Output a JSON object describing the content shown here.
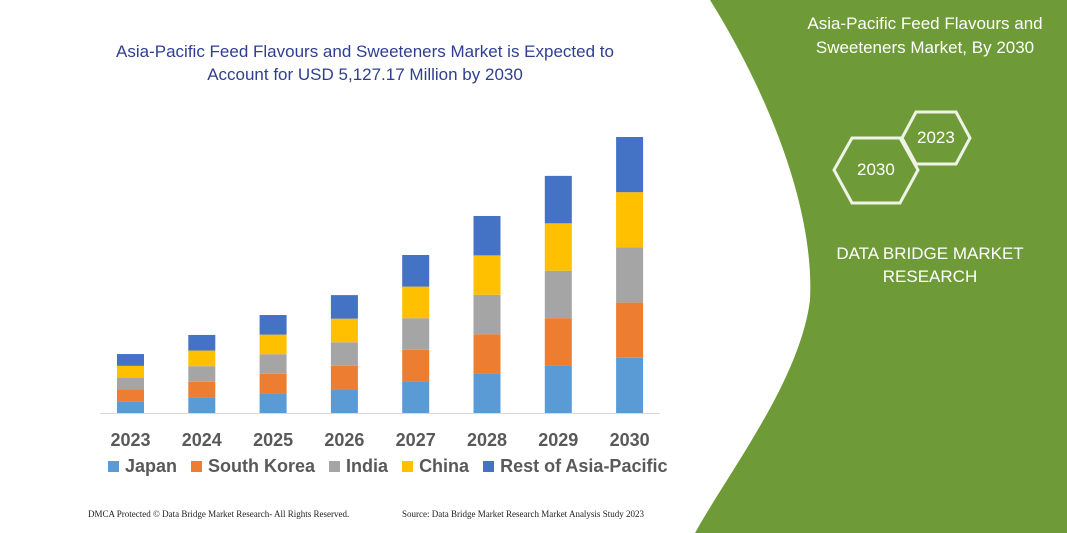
{
  "chart_data": {
    "type": "bar",
    "stacked": true,
    "title": "Asia-Pacific Feed Flavours and Sweeteners Market is Expected to Account for USD 5,127.17 Million by 2030",
    "xlabel": "",
    "ylabel": "",
    "categories": [
      "2023",
      "2024",
      "2025",
      "2026",
      "2027",
      "2028",
      "2029",
      "2030"
    ],
    "series": [
      {
        "name": "Japan",
        "color": "#5b9bd5",
        "values": [
          219,
          290,
          364,
          438,
          587,
          732,
          881,
          1025
        ]
      },
      {
        "name": "South Korea",
        "color": "#ed7d31",
        "values": [
          219,
          290,
          364,
          438,
          587,
          732,
          881,
          1026
        ]
      },
      {
        "name": "India",
        "color": "#a5a5a5",
        "values": [
          219,
          290,
          364,
          438,
          587,
          732,
          881,
          1025
        ]
      },
      {
        "name": "China",
        "color": "#ffc000",
        "values": [
          219,
          290,
          364,
          438,
          587,
          732,
          881,
          1026
        ]
      },
      {
        "name": "Rest of Asia-Pacific",
        "color": "#4472c4",
        "values": [
          219,
          290,
          364,
          438,
          587,
          732,
          881,
          1025
        ]
      }
    ],
    "ylim": [
      0,
      5127.17
    ],
    "grid": false,
    "legend_position": "bottom"
  },
  "panel": {
    "title": "Asia-Pacific Feed Flavours and Sweeteners Market, By 2030",
    "hex_years": [
      "2023",
      "2030"
    ],
    "brand": "DATA BRIDGE MARKET RESEARCH",
    "color": "#6e9b38"
  },
  "footer": {
    "left": "DMCA Protected © Data Bridge Market Research-  All Rights Reserved.",
    "right": "Source: Data Bridge Market Research  Market Analysis Study 2023"
  }
}
